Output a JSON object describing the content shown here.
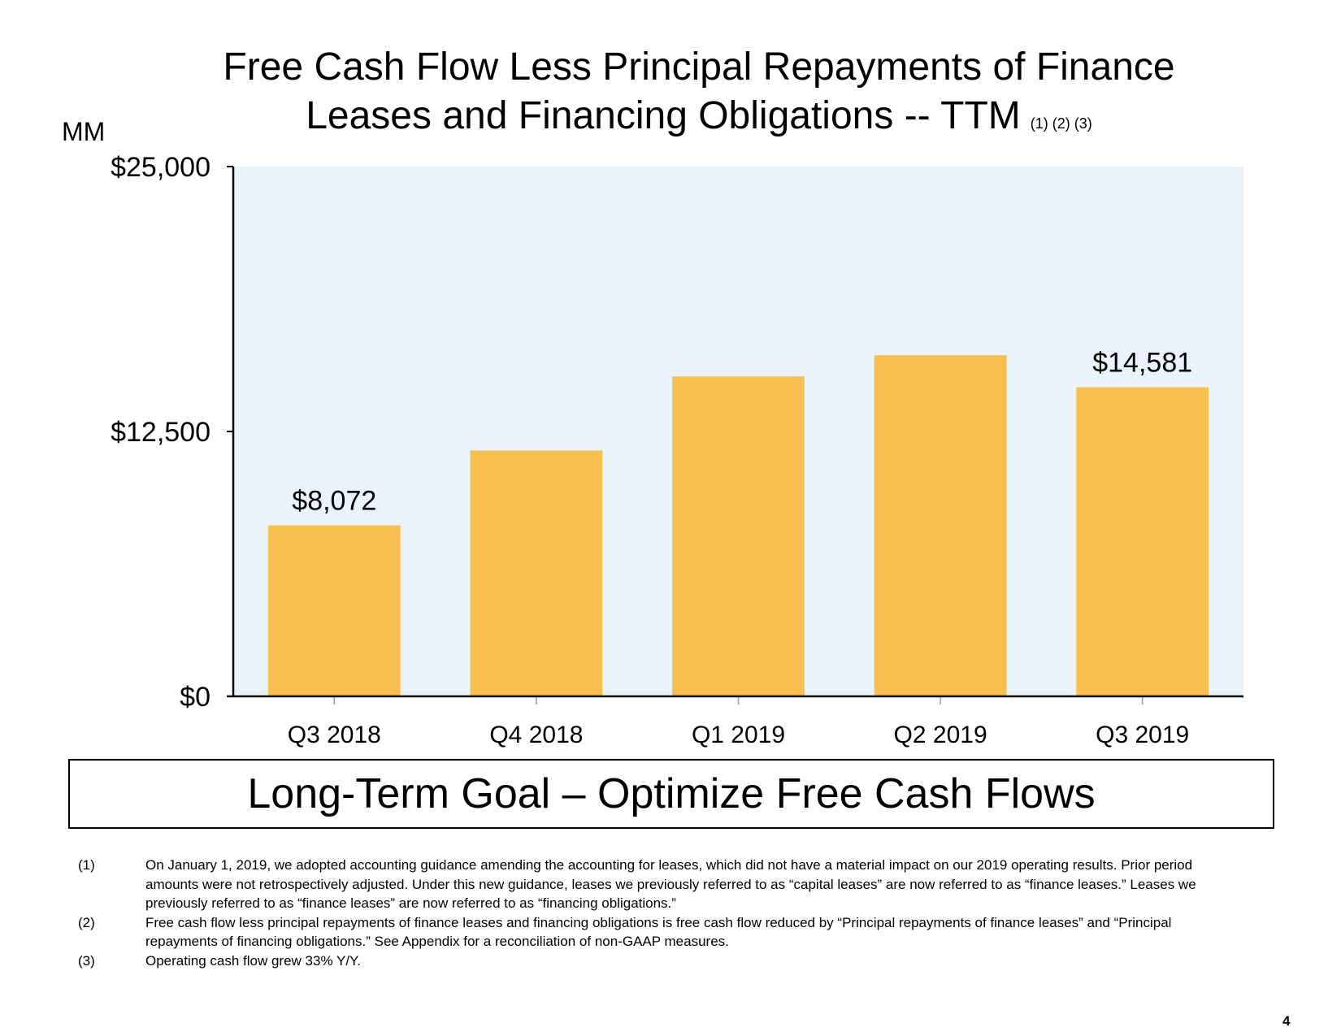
{
  "page": {
    "title_line1": "Free Cash Flow Less Principal Repayments of Finance",
    "title_line2": "Leases and Financing Obligations -- TTM",
    "title_notes": "(1) (2) (3)",
    "unit_label": "MM",
    "goal_text": "Long-Term Goal – Optimize Free Cash Flows",
    "page_number": "4"
  },
  "footnotes": [
    {
      "num": "(1)",
      "text": "On January 1, 2019, we adopted accounting guidance amending the accounting for leases, which did not have a material impact on our 2019 operating results. Prior period amounts were not retrospectively adjusted. Under this new guidance, leases we previously referred to as “capital leases” are now referred to as “finance leases.” Leases we previously referred to as “finance leases” are now referred to as “financing obligations.”"
    },
    {
      "num": "(2)",
      "text": "Free cash flow less principal repayments of finance leases and financing obligations is free cash flow reduced by “Principal repayments of finance leases” and “Principal repayments of financing obligations.” See Appendix for a reconciliation of non-GAAP measures."
    },
    {
      "num": "(3)",
      "text": "Operating cash flow grew 33% Y/Y."
    }
  ],
  "chart_data": {
    "type": "bar",
    "title": "Free Cash Flow Less Principal Repayments of Finance Leases and Financing Obligations -- TTM",
    "ylabel": "MM",
    "xlabel": "",
    "categories": [
      "Q3 2018",
      "Q4 2018",
      "Q1 2019",
      "Q2 2019",
      "Q3 2019"
    ],
    "values": [
      8072,
      11600,
      15100,
      16100,
      14581
    ],
    "data_labels": [
      "$8,072",
      "",
      "",
      "",
      "$14,581"
    ],
    "ylim": [
      0,
      25000
    ],
    "yticks": [
      0,
      12500,
      25000
    ],
    "ytick_labels": [
      "$0",
      "$12,500",
      "$25,000"
    ],
    "grid": false,
    "legend": "none",
    "colors": {
      "bar": "#F8BE50",
      "plot_bg": "#EAF2FC",
      "axis": "#000000",
      "tick": "#999999"
    }
  }
}
